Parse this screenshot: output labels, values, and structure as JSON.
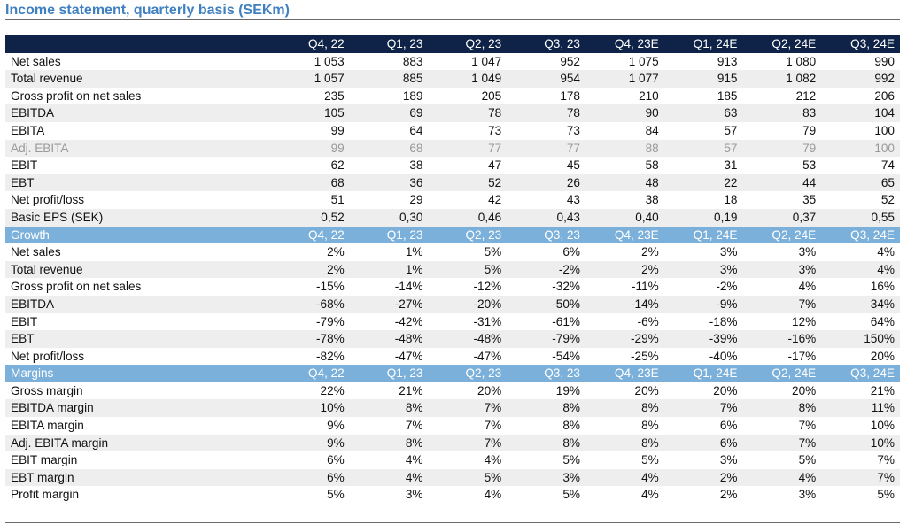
{
  "title": "Income statement, quarterly basis (SEKm)",
  "colors": {
    "title": "#3f80c0",
    "header_dark": "#0f2348",
    "header_section": "#7bb0da",
    "dimmed_text": "#9a9a9a"
  },
  "periods": [
    "Q4, 22",
    "Q1, 23",
    "Q2, 23",
    "Q3, 23",
    "Q4, 23E",
    "Q1, 24E",
    "Q2, 24E",
    "Q3, 24E"
  ],
  "sections": [
    {
      "heading": "",
      "style": "dark",
      "rows": [
        {
          "label": "Net sales",
          "values": [
            "1 053",
            "883",
            "1 047",
            "952",
            "1 075",
            "913",
            "1 080",
            "990"
          ]
        },
        {
          "label": "Total revenue",
          "values": [
            "1 057",
            "885",
            "1 049",
            "954",
            "1 077",
            "915",
            "1 082",
            "992"
          ]
        },
        {
          "label": "Gross profit on net sales",
          "values": [
            "235",
            "189",
            "205",
            "178",
            "210",
            "185",
            "212",
            "206"
          ]
        },
        {
          "label": "EBITDA",
          "values": [
            "105",
            "69",
            "78",
            "78",
            "90",
            "63",
            "83",
            "104"
          ]
        },
        {
          "label": "EBITA",
          "values": [
            "99",
            "64",
            "73",
            "73",
            "84",
            "57",
            "79",
            "100"
          ]
        },
        {
          "label": "Adj. EBITA",
          "dim": true,
          "values": [
            "99",
            "68",
            "77",
            "77",
            "88",
            "57",
            "79",
            "100"
          ]
        },
        {
          "label": "EBIT",
          "values": [
            "62",
            "38",
            "47",
            "45",
            "58",
            "31",
            "53",
            "74"
          ]
        },
        {
          "label": "EBT",
          "values": [
            "68",
            "36",
            "52",
            "26",
            "48",
            "22",
            "44",
            "65"
          ]
        },
        {
          "label": "Net profit/loss",
          "values": [
            "51",
            "29",
            "42",
            "43",
            "38",
            "18",
            "35",
            "52"
          ]
        },
        {
          "label": "Basic EPS (SEK)",
          "values": [
            "0,52",
            "0,30",
            "0,46",
            "0,43",
            "0,40",
            "0,19",
            "0,37",
            "0,55"
          ]
        }
      ]
    },
    {
      "heading": "Growth",
      "style": "blue",
      "rows": [
        {
          "label": "Net sales",
          "values": [
            "2%",
            "1%",
            "5%",
            "6%",
            "2%",
            "3%",
            "3%",
            "4%"
          ]
        },
        {
          "label": "Total revenue",
          "values": [
            "2%",
            "1%",
            "5%",
            "-2%",
            "2%",
            "3%",
            "3%",
            "4%"
          ]
        },
        {
          "label": "Gross profit on net sales",
          "values": [
            "-15%",
            "-14%",
            "-12%",
            "-32%",
            "-11%",
            "-2%",
            "4%",
            "16%"
          ]
        },
        {
          "label": "EBITDA",
          "values": [
            "-68%",
            "-27%",
            "-20%",
            "-50%",
            "-14%",
            "-9%",
            "7%",
            "34%"
          ]
        },
        {
          "label": "EBIT",
          "values": [
            "-79%",
            "-42%",
            "-31%",
            "-61%",
            "-6%",
            "-18%",
            "12%",
            "64%"
          ]
        },
        {
          "label": "EBT",
          "values": [
            "-78%",
            "-48%",
            "-48%",
            "-79%",
            "-29%",
            "-39%",
            "-16%",
            "150%"
          ]
        },
        {
          "label": "Net profit/loss",
          "values": [
            "-82%",
            "-47%",
            "-47%",
            "-54%",
            "-25%",
            "-40%",
            "-17%",
            "20%"
          ]
        }
      ]
    },
    {
      "heading": "Margins",
      "style": "blue",
      "rows": [
        {
          "label": "Gross margin",
          "values": [
            "22%",
            "21%",
            "20%",
            "19%",
            "20%",
            "20%",
            "20%",
            "21%"
          ]
        },
        {
          "label": "EBITDA margin",
          "values": [
            "10%",
            "8%",
            "7%",
            "8%",
            "8%",
            "7%",
            "8%",
            "11%"
          ]
        },
        {
          "label": "EBITA margin",
          "values": [
            "9%",
            "7%",
            "7%",
            "8%",
            "8%",
            "6%",
            "7%",
            "10%"
          ]
        },
        {
          "label": "Adj. EBITA margin",
          "values": [
            "9%",
            "8%",
            "7%",
            "8%",
            "8%",
            "6%",
            "7%",
            "10%"
          ]
        },
        {
          "label": "EBIT margin",
          "values": [
            "6%",
            "4%",
            "4%",
            "5%",
            "5%",
            "3%",
            "5%",
            "7%"
          ]
        },
        {
          "label": "EBT margin",
          "values": [
            "6%",
            "4%",
            "5%",
            "3%",
            "4%",
            "2%",
            "4%",
            "7%"
          ]
        },
        {
          "label": "Profit margin",
          "values": [
            "5%",
            "3%",
            "4%",
            "5%",
            "4%",
            "2%",
            "3%",
            "5%"
          ]
        }
      ]
    }
  ]
}
